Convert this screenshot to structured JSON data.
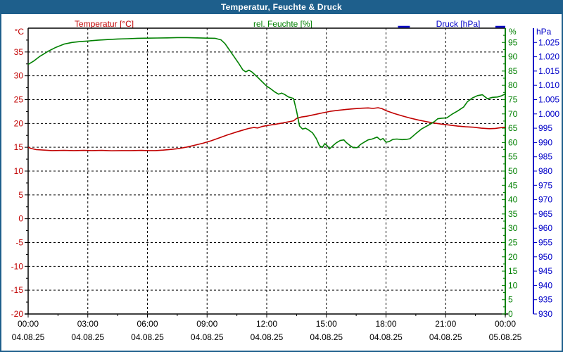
{
  "window": {
    "title": "Temperatur, Feuchte & Druck"
  },
  "colors": {
    "titlebar_bg": "#1e5f8c",
    "titlebar_text": "#ffffff",
    "frame_border": "#1e5f8c",
    "plot_bg": "#ffffff",
    "grid": "#000000",
    "axis_black": "#000000",
    "temperature": "#c00000",
    "humidity": "#008000",
    "pressure": "#0000c8",
    "x_label_text": "#000000"
  },
  "series_headers": {
    "temp": "Temperatur [°C]",
    "hum": "rel. Feuchte [%]",
    "pres": "Druck [hPa]"
  },
  "chart_data": {
    "type": "line",
    "title": "Temperatur, Feuchte & Druck",
    "grid": "dashed-black, horizontal every 5°C, vertical every 3h",
    "x_axis": {
      "unit": "time",
      "range_hours": [
        0,
        24
      ],
      "gridline_hours": [
        3,
        6,
        9,
        12,
        15,
        18,
        21
      ],
      "ticks": [
        {
          "hour": 0,
          "time": "00:00",
          "date": "04.08.25"
        },
        {
          "hour": 3,
          "time": "03:00",
          "date": "04.08.25"
        },
        {
          "hour": 6,
          "time": "06:00",
          "date": "04.08.25"
        },
        {
          "hour": 9,
          "time": "09:00",
          "date": "04.08.25"
        },
        {
          "hour": 12,
          "time": "12:00",
          "date": "04.08.25"
        },
        {
          "hour": 15,
          "time": "15:00",
          "date": "04.08.25"
        },
        {
          "hour": 18,
          "time": "18:00",
          "date": "04.08.25"
        },
        {
          "hour": 21,
          "time": "21:00",
          "date": "04.08.25"
        },
        {
          "hour": 24,
          "time": "00:00",
          "date": "05.08.25"
        }
      ]
    },
    "y_axes": {
      "temperature": {
        "title": "°C",
        "side": "left",
        "min": -20,
        "max": 40,
        "tick_step": 5,
        "ticks": [
          {
            "v": 35,
            "label": "35"
          },
          {
            "v": 30,
            "label": "30"
          },
          {
            "v": 25,
            "label": "25"
          },
          {
            "v": 20,
            "label": "20"
          },
          {
            "v": 15,
            "label": "15"
          },
          {
            "v": 10,
            "label": "10"
          },
          {
            "v": 5,
            "label": "5"
          },
          {
            "v": 0,
            "label": "0"
          },
          {
            "v": -5,
            "label": "-5"
          },
          {
            "v": -10,
            "label": "-10"
          },
          {
            "v": -15,
            "label": "-15"
          },
          {
            "v": -20,
            "label": "-20"
          }
        ]
      },
      "humidity": {
        "title": "%",
        "side": "right",
        "min": 0,
        "max": 100,
        "tick_step": 5,
        "ticks": [
          {
            "v": 95,
            "label": "95"
          },
          {
            "v": 90,
            "label": "90"
          },
          {
            "v": 85,
            "label": "85"
          },
          {
            "v": 80,
            "label": "80"
          },
          {
            "v": 75,
            "label": "75"
          },
          {
            "v": 70,
            "label": "70"
          },
          {
            "v": 65,
            "label": "65"
          },
          {
            "v": 60,
            "label": "60"
          },
          {
            "v": 55,
            "label": "55"
          },
          {
            "v": 50,
            "label": "50"
          },
          {
            "v": 45,
            "label": "45"
          },
          {
            "v": 40,
            "label": "40"
          },
          {
            "v": 35,
            "label": "35"
          },
          {
            "v": 30,
            "label": "30"
          },
          {
            "v": 25,
            "label": "25"
          },
          {
            "v": 20,
            "label": "20"
          },
          {
            "v": 15,
            "label": "15"
          },
          {
            "v": 10,
            "label": "10"
          },
          {
            "v": 5,
            "label": "5"
          },
          {
            "v": 0,
            "label": "0"
          }
        ]
      },
      "pressure": {
        "title": "hPa",
        "side": "right-outer",
        "min": 930,
        "max": 1030,
        "tick_step": 5,
        "ticks": [
          {
            "v": 1025,
            "label": "1.025"
          },
          {
            "v": 1020,
            "label": "1.020"
          },
          {
            "v": 1015,
            "label": "1.015"
          },
          {
            "v": 1010,
            "label": "1.010"
          },
          {
            "v": 1005,
            "label": "1.005"
          },
          {
            "v": 1000,
            "label": "1.000"
          },
          {
            "v": 995,
            "label": "995"
          },
          {
            "v": 990,
            "label": "990"
          },
          {
            "v": 985,
            "label": "985"
          },
          {
            "v": 980,
            "label": "980"
          },
          {
            "v": 975,
            "label": "975"
          },
          {
            "v": 970,
            "label": "970"
          },
          {
            "v": 965,
            "label": "965"
          },
          {
            "v": 960,
            "label": "960"
          },
          {
            "v": 955,
            "label": "955"
          },
          {
            "v": 950,
            "label": "950"
          },
          {
            "v": 945,
            "label": "945"
          },
          {
            "v": 940,
            "label": "940"
          },
          {
            "v": 935,
            "label": "935"
          },
          {
            "v": 930,
            "label": "930"
          }
        ]
      }
    },
    "series": [
      {
        "name": "Temperatur",
        "unit": "°C",
        "axis": "temperature",
        "color": "#c00000",
        "data_name": "temperature-line",
        "points": [
          [
            0,
            15.0
          ],
          [
            0.15,
            14.75
          ],
          [
            0.4,
            14.5
          ],
          [
            0.8,
            14.4
          ],
          [
            1.2,
            14.3
          ],
          [
            1.8,
            14.35
          ],
          [
            2.3,
            14.3
          ],
          [
            2.8,
            14.35
          ],
          [
            3.2,
            14.3
          ],
          [
            3.7,
            14.35
          ],
          [
            4.2,
            14.25
          ],
          [
            4.7,
            14.3
          ],
          [
            5.2,
            14.3
          ],
          [
            5.7,
            14.35
          ],
          [
            6,
            14.3
          ],
          [
            6.4,
            14.3
          ],
          [
            6.8,
            14.4
          ],
          [
            7.2,
            14.55
          ],
          [
            7.6,
            14.75
          ],
          [
            8,
            15.05
          ],
          [
            8.4,
            15.45
          ],
          [
            8.8,
            15.85
          ],
          [
            9.2,
            16.35
          ],
          [
            9.6,
            16.95
          ],
          [
            10,
            17.55
          ],
          [
            10.4,
            18.1
          ],
          [
            10.8,
            18.6
          ],
          [
            11.1,
            18.95
          ],
          [
            11.35,
            19.15
          ],
          [
            11.55,
            19.05
          ],
          [
            11.8,
            19.4
          ],
          [
            12,
            19.55
          ],
          [
            12.4,
            19.8
          ],
          [
            12.8,
            20.1
          ],
          [
            13.1,
            20.35
          ],
          [
            13.35,
            20.55
          ],
          [
            13.5,
            21.05
          ],
          [
            13.75,
            21.35
          ],
          [
            14,
            21.5
          ],
          [
            14.4,
            21.85
          ],
          [
            14.8,
            22.2
          ],
          [
            15.2,
            22.55
          ],
          [
            15.6,
            22.75
          ],
          [
            16,
            22.95
          ],
          [
            16.4,
            23.1
          ],
          [
            16.8,
            23.2
          ],
          [
            17.1,
            23.25
          ],
          [
            17.35,
            23.15
          ],
          [
            17.6,
            23.3
          ],
          [
            17.8,
            23.1
          ],
          [
            18,
            22.7
          ],
          [
            18.4,
            22.1
          ],
          [
            18.8,
            21.6
          ],
          [
            19.2,
            21.15
          ],
          [
            19.6,
            20.75
          ],
          [
            20,
            20.4
          ],
          [
            20.4,
            20.1
          ],
          [
            20.8,
            19.85
          ],
          [
            21.2,
            19.65
          ],
          [
            21.6,
            19.45
          ],
          [
            22,
            19.3
          ],
          [
            22.4,
            19.2
          ],
          [
            22.8,
            19.0
          ],
          [
            23.2,
            18.9
          ],
          [
            23.5,
            18.95
          ],
          [
            23.75,
            19.1
          ],
          [
            24,
            19.2
          ]
        ]
      },
      {
        "name": "rel. Feuchte",
        "unit": "%",
        "axis": "humidity",
        "color": "#008000",
        "data_name": "humidity-line",
        "points": [
          [
            0,
            87.3
          ],
          [
            0.3,
            88.6
          ],
          [
            0.6,
            90.2
          ],
          [
            1,
            91.9
          ],
          [
            1.4,
            93.3
          ],
          [
            1.8,
            94.4
          ],
          [
            2.2,
            95.0
          ],
          [
            2.6,
            95.3
          ],
          [
            3,
            95.5
          ],
          [
            3.5,
            95.8
          ],
          [
            4,
            96.0
          ],
          [
            4.5,
            96.2
          ],
          [
            5,
            96.3
          ],
          [
            5.5,
            96.45
          ],
          [
            6,
            96.5
          ],
          [
            6.5,
            96.55
          ],
          [
            7,
            96.6
          ],
          [
            7.5,
            96.7
          ],
          [
            8,
            96.7
          ],
          [
            8.5,
            96.6
          ],
          [
            9,
            96.5
          ],
          [
            9.4,
            96.45
          ],
          [
            9.7,
            95.9
          ],
          [
            9.9,
            94.6
          ],
          [
            10.1,
            92.6
          ],
          [
            10.35,
            90.1
          ],
          [
            10.6,
            87.6
          ],
          [
            10.8,
            85.4
          ],
          [
            10.95,
            84.7
          ],
          [
            11.1,
            85.3
          ],
          [
            11.25,
            84.7
          ],
          [
            11.5,
            83.1
          ],
          [
            11.75,
            81.4
          ],
          [
            12,
            79.7
          ],
          [
            12.2,
            78.8
          ],
          [
            12.4,
            77.7
          ],
          [
            12.6,
            76.9
          ],
          [
            12.75,
            77.3
          ],
          [
            12.9,
            76.8
          ],
          [
            13.1,
            75.9
          ],
          [
            13.35,
            75.4
          ],
          [
            13.5,
            71.0
          ],
          [
            13.65,
            65.8
          ],
          [
            13.8,
            64.7
          ],
          [
            13.95,
            65.0
          ],
          [
            14.1,
            64.4
          ],
          [
            14.3,
            63.4
          ],
          [
            14.5,
            61.3
          ],
          [
            14.65,
            58.9
          ],
          [
            14.8,
            58.3
          ],
          [
            14.92,
            59.6
          ],
          [
            15.05,
            58.8
          ],
          [
            15.15,
            57.7
          ],
          [
            15.33,
            58.9
          ],
          [
            15.5,
            59.9
          ],
          [
            15.7,
            60.7
          ],
          [
            15.88,
            60.9
          ],
          [
            16,
            60.0
          ],
          [
            16.2,
            58.9
          ],
          [
            16.35,
            58.2
          ],
          [
            16.55,
            58.2
          ],
          [
            16.72,
            59.3
          ],
          [
            16.9,
            60.1
          ],
          [
            17.1,
            60.9
          ],
          [
            17.3,
            61.2
          ],
          [
            17.55,
            61.9
          ],
          [
            17.72,
            60.9
          ],
          [
            17.85,
            61.4
          ],
          [
            18,
            60.1
          ],
          [
            18.15,
            60.3
          ],
          [
            18.35,
            61.1
          ],
          [
            18.55,
            61.2
          ],
          [
            18.8,
            61.0
          ],
          [
            19.05,
            61.1
          ],
          [
            19.2,
            61.3
          ],
          [
            19.5,
            63.1
          ],
          [
            19.8,
            64.8
          ],
          [
            20.2,
            66.3
          ],
          [
            20.45,
            67.4
          ],
          [
            20.6,
            68.3
          ],
          [
            20.8,
            68.5
          ],
          [
            21.05,
            68.6
          ],
          [
            21.3,
            69.8
          ],
          [
            21.6,
            71.0
          ],
          [
            21.9,
            72.4
          ],
          [
            22.1,
            74.3
          ],
          [
            22.35,
            75.6
          ],
          [
            22.6,
            76.4
          ],
          [
            22.85,
            76.7
          ],
          [
            23.1,
            75.3
          ],
          [
            23.35,
            75.8
          ],
          [
            23.6,
            75.9
          ],
          [
            23.8,
            76.3
          ],
          [
            24,
            77.0
          ]
        ]
      },
      {
        "name": "Druck",
        "unit": "hPa",
        "axis": "pressure",
        "color": "#0000c8",
        "data_name": "pressure-line",
        "note": "pressure sits at/above top of scale (~1030 hPa); visible only as short segments touching the top frame",
        "points": [
          [
            18.6,
            1030
          ],
          [
            19.2,
            1030
          ],
          null,
          [
            23.5,
            1030
          ],
          [
            24,
            1030
          ]
        ]
      }
    ]
  }
}
